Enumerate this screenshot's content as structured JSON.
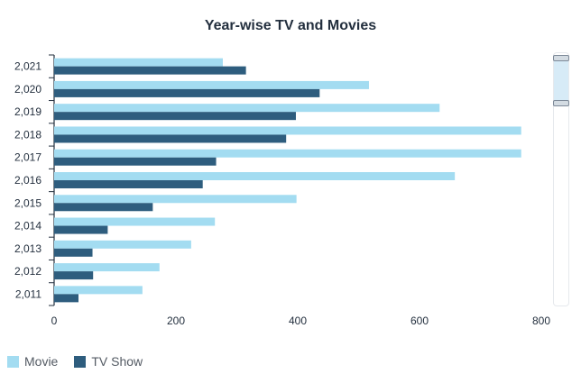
{
  "chart_data": {
    "type": "bar",
    "orientation": "horizontal",
    "title": "Year-wise TV and Movies",
    "xlabel": "",
    "ylabel": "",
    "categories": [
      "2,021",
      "2,020",
      "2,019",
      "2,018",
      "2,017",
      "2,016",
      "2,015",
      "2,014",
      "2,013",
      "2,012",
      "2,011"
    ],
    "series": [
      {
        "name": "Movie",
        "color": "#a3dcf1",
        "values": [
          277,
          517,
          633,
          767,
          767,
          658,
          398,
          264,
          225,
          173,
          145
        ]
      },
      {
        "name": "TV Show",
        "color": "#2e5d7e",
        "values": [
          315,
          436,
          397,
          381,
          266,
          244,
          162,
          88,
          63,
          64,
          40
        ]
      }
    ],
    "xlim": [
      0,
      800
    ],
    "xticks": [
      "0",
      "200",
      "400",
      "600",
      "800"
    ],
    "grid": false,
    "legend_position": "bottom-left"
  }
}
